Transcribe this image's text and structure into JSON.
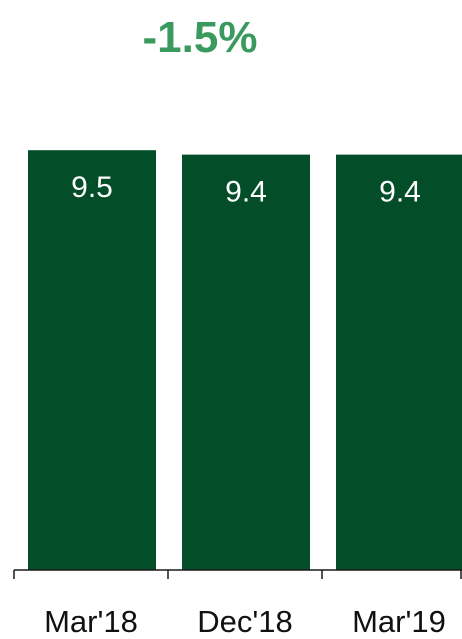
{
  "chart_data": {
    "type": "bar",
    "title": "-1.5%",
    "categories": [
      "Mar'18",
      "Dec'18",
      "Mar'19"
    ],
    "values": [
      9.5,
      9.4,
      9.4
    ],
    "data_labels": [
      "9.5",
      "9.4",
      "9.4"
    ],
    "xlabel": "",
    "ylabel": "",
    "ylim": [
      0,
      9.55
    ],
    "grid": false,
    "legend": "none"
  },
  "colors": {
    "bar": "#034d28",
    "title": "#3a9a5e",
    "data_label": "#ffffff",
    "axis": "#1a1a1a",
    "tick_label": "#111111"
  }
}
